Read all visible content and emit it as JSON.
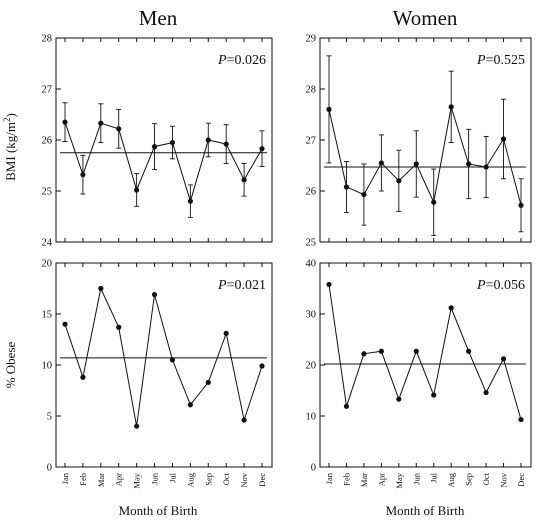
{
  "figure": {
    "x_title": "Month of Birth",
    "months": [
      "Jan",
      "Feb",
      "Mar",
      "Apr",
      "May",
      "Jun",
      "Jul",
      "Aug",
      "Sep",
      "Oct",
      "Nov",
      "Dec"
    ]
  },
  "chart_data": [
    {
      "id": "men_bmi",
      "type": "line",
      "title": "Men",
      "ylabel": "BMI (kg/m²)",
      "ylabel_main": "BMI (kg/m",
      "ylabel_sup": "2",
      "ylabel_close": ")",
      "ylim": [
        24,
        28
      ],
      "yticks": [
        24,
        25,
        26,
        27,
        28
      ],
      "p_prefix": "P",
      "p_value": "=0.026",
      "reference": 25.75,
      "values": [
        26.35,
        25.32,
        26.33,
        26.22,
        25.02,
        25.87,
        25.95,
        24.8,
        26.0,
        25.92,
        25.22,
        25.83
      ],
      "err": [
        0.38,
        0.38,
        0.38,
        0.38,
        0.32,
        0.45,
        0.32,
        0.32,
        0.33,
        0.38,
        0.32,
        0.35
      ]
    },
    {
      "id": "women_bmi",
      "type": "line",
      "title": "Women",
      "ylabel": "",
      "ylim": [
        25,
        29
      ],
      "yticks": [
        25,
        26,
        27,
        28,
        29
      ],
      "p_prefix": "P",
      "p_value": "=0.525",
      "reference": 26.47,
      "values": [
        27.6,
        26.08,
        25.93,
        26.55,
        26.2,
        26.53,
        25.78,
        27.65,
        26.53,
        26.47,
        27.02,
        25.72
      ],
      "err": [
        1.05,
        0.5,
        0.6,
        0.55,
        0.6,
        0.65,
        0.65,
        0.7,
        0.68,
        0.6,
        0.78,
        0.52
      ]
    },
    {
      "id": "men_obese",
      "type": "line",
      "title": "",
      "ylabel": "% Obese",
      "ylim": [
        0,
        20
      ],
      "yticks": [
        0,
        5,
        10,
        15,
        20
      ],
      "p_prefix": "P",
      "p_value": "=0.021",
      "reference": 10.7,
      "values": [
        14.0,
        8.8,
        17.5,
        13.7,
        4.0,
        16.9,
        10.5,
        6.1,
        8.3,
        13.1,
        4.6,
        9.9
      ]
    },
    {
      "id": "women_obese",
      "type": "line",
      "title": "",
      "ylabel": "",
      "ylim": [
        0,
        40
      ],
      "yticks": [
        0,
        10,
        20,
        30,
        40
      ],
      "p_prefix": "P",
      "p_value": "=0.056",
      "reference": 20.2,
      "values": [
        35.8,
        11.9,
        22.2,
        22.7,
        13.3,
        22.7,
        14.1,
        31.2,
        22.7,
        14.6,
        21.2,
        9.3
      ]
    }
  ]
}
